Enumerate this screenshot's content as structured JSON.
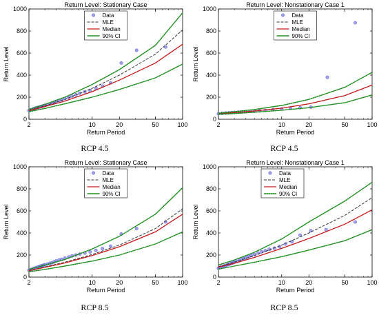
{
  "colors": {
    "data": "#6f6fe0",
    "mle": "#333333",
    "median": "#c41a1a",
    "ci_line": "#1f7a1f",
    "ci_dots": "#3bd43b"
  },
  "chart_data": [
    {
      "type": "line",
      "title": "Return Level: Stationary Case",
      "caption": "RCP 4.5",
      "xlabel": "Return Period",
      "ylabel": "Return Level",
      "xscale": "log",
      "xlim": [
        2,
        100
      ],
      "ylim": [
        0,
        1000
      ],
      "xticks": [
        2,
        10,
        20,
        50,
        100
      ],
      "yticks": [
        0,
        200,
        400,
        600,
        800,
        1000
      ],
      "legend": {
        "placement": "top-center",
        "entries": [
          "Data",
          "MLE",
          "Median",
          "90% CI"
        ]
      },
      "series": [
        {
          "name": "Data",
          "style": "markers",
          "x": [
            2.0,
            2.1,
            2.2,
            2.3,
            2.4,
            2.5,
            2.6,
            2.7,
            2.8,
            2.9,
            3.0,
            3.2,
            3.4,
            3.6,
            3.8,
            4.0,
            4.3,
            4.6,
            5.0,
            5.5,
            6.0,
            6.6,
            7.3,
            8.3,
            9.5,
            11,
            13,
            16,
            21,
            31,
            65
          ],
          "y": [
            78,
            85,
            92,
            98,
            102,
            106,
            110,
            114,
            118,
            122,
            126,
            132,
            138,
            146,
            155,
            162,
            170,
            178,
            188,
            198,
            210,
            222,
            236,
            248,
            262,
            282,
            300,
            330,
            510,
            625,
            655
          ]
        },
        {
          "name": "MLE",
          "style": "dashed",
          "x": [
            2,
            3,
            5,
            10,
            20,
            50,
            100
          ],
          "y": [
            80,
            122,
            180,
            280,
            400,
            590,
            810
          ]
        },
        {
          "name": "Median",
          "style": "solid",
          "x": [
            2,
            3,
            5,
            10,
            20,
            50,
            100
          ],
          "y": [
            78,
            115,
            165,
            250,
            355,
            510,
            680
          ]
        },
        {
          "name": "90% CI upper",
          "style": "ci",
          "x": [
            2,
            3,
            5,
            10,
            20,
            50,
            100
          ],
          "y": [
            88,
            135,
            200,
            315,
            450,
            670,
            965
          ]
        },
        {
          "name": "90% CI lower",
          "style": "ci",
          "x": [
            2,
            3,
            5,
            10,
            20,
            50,
            100
          ],
          "y": [
            68,
            98,
            140,
            200,
            270,
            375,
            500
          ]
        }
      ]
    },
    {
      "type": "line",
      "title": "Return Level: Nonstationary Case 1",
      "caption": "RCP 4.5",
      "xlabel": "Return Period",
      "ylabel": "Return Level",
      "xscale": "log",
      "xlim": [
        2,
        100
      ],
      "ylim": [
        0,
        1000
      ],
      "xticks": [
        2,
        10,
        20,
        50,
        100
      ],
      "yticks": [
        0,
        200,
        400,
        600,
        800,
        1000
      ],
      "legend": {
        "placement": "top-center",
        "entries": [
          "Data",
          "MLE",
          "Median",
          "90% CI"
        ]
      },
      "series": [
        {
          "name": "Data",
          "style": "markers",
          "x": [
            2.0,
            2.2,
            2.4,
            2.6,
            2.8,
            3.0,
            3.3,
            3.6,
            4.0,
            4.5,
            5.0,
            5.7,
            6.6,
            8.0,
            10,
            12.5,
            16,
            21,
            32,
            65
          ],
          "y": [
            50,
            53,
            56,
            58,
            60,
            62,
            64,
            66,
            68,
            71,
            73,
            76,
            80,
            86,
            94,
            100,
            105,
            110,
            380,
            875
          ]
        },
        {
          "name": "MLE",
          "style": "dashed",
          "x": [
            2,
            3,
            5,
            10,
            20,
            50,
            100
          ],
          "y": [
            50,
            60,
            75,
            100,
            140,
            215,
            310
          ]
        },
        {
          "name": "Median",
          "style": "solid",
          "x": [
            2,
            3,
            5,
            10,
            20,
            50,
            100
          ],
          "y": [
            50,
            60,
            75,
            100,
            140,
            215,
            310
          ]
        },
        {
          "name": "90% CI upper",
          "style": "ci",
          "x": [
            2,
            3,
            5,
            10,
            20,
            50,
            100
          ],
          "y": [
            55,
            68,
            88,
            125,
            180,
            290,
            425
          ]
        },
        {
          "name": "90% CI lower",
          "style": "ci",
          "x": [
            2,
            3,
            5,
            10,
            20,
            50,
            100
          ],
          "y": [
            45,
            52,
            64,
            82,
            105,
            150,
            220
          ]
        }
      ]
    },
    {
      "type": "line",
      "title": "Return Level: Stationary Case",
      "caption": "RCP 8.5",
      "xlabel": "Return Period",
      "ylabel": "Return Level",
      "xscale": "log",
      "xlim": [
        2,
        100
      ],
      "ylim": [
        0,
        1000
      ],
      "xticks": [
        2,
        10,
        20,
        50,
        100
      ],
      "yticks": [
        0,
        200,
        400,
        600,
        800,
        1000
      ],
      "legend": {
        "placement": "top-center",
        "entries": [
          "Data",
          "MLE",
          "Median",
          "90% CI"
        ]
      },
      "series": [
        {
          "name": "Data",
          "style": "markers",
          "x": [
            2.0,
            2.1,
            2.2,
            2.3,
            2.4,
            2.5,
            2.6,
            2.7,
            2.8,
            2.9,
            3.0,
            3.2,
            3.4,
            3.6,
            3.8,
            4.0,
            4.3,
            4.6,
            5.0,
            5.5,
            6.0,
            6.6,
            7.3,
            8.3,
            9.5,
            11,
            13,
            16,
            21,
            31,
            65
          ],
          "y": [
            62,
            68,
            74,
            80,
            85,
            90,
            95,
            100,
            104,
            108,
            112,
            118,
            124,
            130,
            138,
            146,
            154,
            162,
            172,
            182,
            192,
            200,
            208,
            218,
            228,
            242,
            258,
            280,
            390,
            440,
            500
          ]
        },
        {
          "name": "MLE",
          "style": "dashed",
          "x": [
            2,
            3,
            5,
            10,
            20,
            50,
            100
          ],
          "y": [
            60,
            92,
            135,
            205,
            290,
            440,
            620
          ]
        },
        {
          "name": "Median",
          "style": "solid",
          "x": [
            2,
            3,
            5,
            10,
            20,
            50,
            100
          ],
          "y": [
            58,
            88,
            128,
            195,
            275,
            410,
            570
          ]
        },
        {
          "name": "90% CI upper",
          "style": "ci",
          "x": [
            2,
            3,
            5,
            10,
            20,
            50,
            100
          ],
          "y": [
            70,
            108,
            160,
            255,
            370,
            570,
            810
          ]
        },
        {
          "name": "90% CI lower",
          "style": "ci",
          "x": [
            2,
            3,
            5,
            10,
            20,
            50,
            100
          ],
          "y": [
            48,
            70,
            100,
            145,
            200,
            300,
            410
          ]
        }
      ]
    },
    {
      "type": "line",
      "title": "Return Level: Nonstationary Case 1",
      "caption": "RCP 8.5",
      "xlabel": "Return Period",
      "ylabel": "Return Level",
      "xscale": "log",
      "xlim": [
        2,
        100
      ],
      "ylim": [
        0,
        1000
      ],
      "xticks": [
        2,
        10,
        20,
        50,
        100
      ],
      "yticks": [
        0,
        200,
        400,
        600,
        800,
        1000
      ],
      "legend": {
        "placement": "top-left",
        "entries": [
          "Data",
          "MLE",
          "Median",
          "90% CI"
        ]
      },
      "series": [
        {
          "name": "Data",
          "style": "markers",
          "x": [
            2.0,
            2.1,
            2.2,
            2.3,
            2.4,
            2.5,
            2.6,
            2.7,
            2.8,
            2.9,
            3.0,
            3.2,
            3.4,
            3.6,
            3.8,
            4.0,
            4.3,
            4.6,
            5.0,
            5.5,
            6.0,
            6.6,
            7.3,
            8.3,
            9.5,
            11,
            13,
            16,
            21,
            31,
            65
          ],
          "y": [
            80,
            88,
            95,
            100,
            105,
            110,
            115,
            120,
            125,
            130,
            135,
            142,
            150,
            158,
            166,
            175,
            185,
            195,
            205,
            218,
            230,
            240,
            252,
            262,
            275,
            300,
            320,
            380,
            420,
            430,
            500
          ]
        },
        {
          "name": "MLE",
          "style": "dashed",
          "x": [
            2,
            3,
            5,
            10,
            20,
            50,
            100
          ],
          "y": [
            95,
            135,
            195,
            290,
            400,
            560,
            720
          ]
        },
        {
          "name": "Median",
          "style": "solid",
          "x": [
            2,
            3,
            5,
            10,
            20,
            50,
            100
          ],
          "y": [
            90,
            125,
            178,
            260,
            350,
            480,
            610
          ]
        },
        {
          "name": "90% CI upper",
          "style": "ci",
          "x": [
            2,
            3,
            5,
            10,
            20,
            50,
            100
          ],
          "y": [
            110,
            155,
            225,
            345,
            500,
            690,
            860
          ]
        },
        {
          "name": "90% CI lower",
          "style": "ci",
          "x": [
            2,
            3,
            5,
            10,
            20,
            50,
            100
          ],
          "y": [
            72,
            100,
            135,
            185,
            245,
            330,
            430
          ]
        }
      ]
    }
  ]
}
